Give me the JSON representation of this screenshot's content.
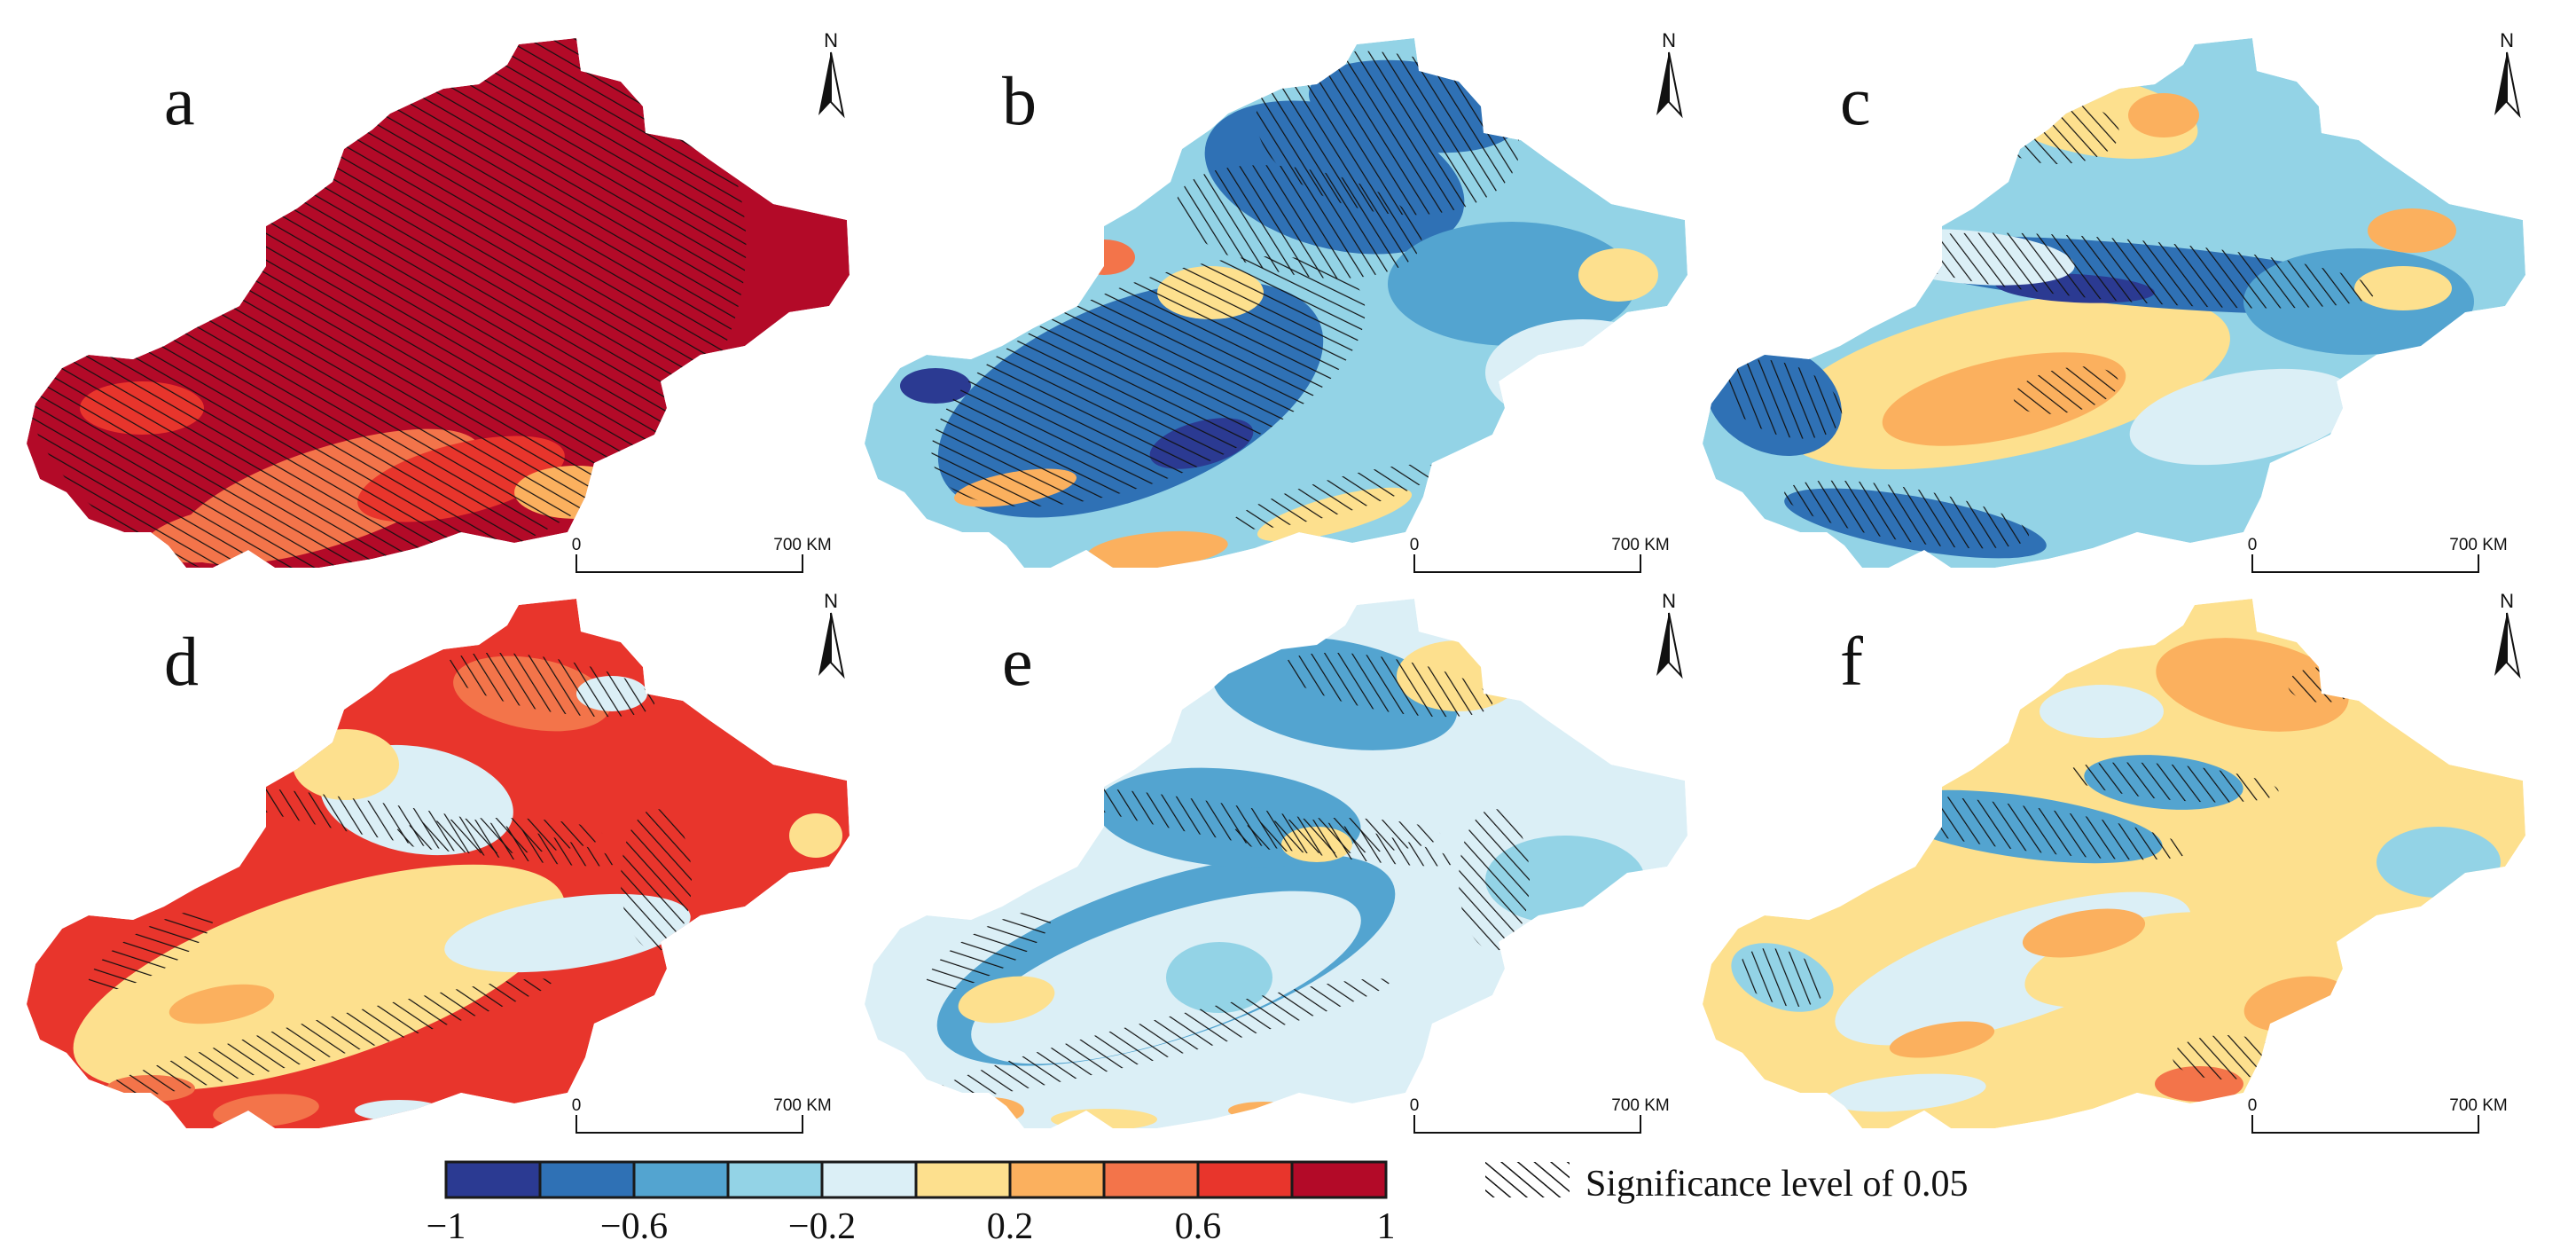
{
  "figure": {
    "north_label": "N",
    "scale": {
      "start": "0",
      "end": "700 KM"
    },
    "panels": [
      {
        "letter": "a",
        "theme": "strong-positive",
        "significance": "widespread"
      },
      {
        "letter": "b",
        "theme": "negative",
        "significance": "north-and-west"
      },
      {
        "letter": "c",
        "theme": "mixed",
        "significance": "central-band"
      },
      {
        "letter": "d",
        "theme": "positive-rim",
        "significance": "mountain-ring"
      },
      {
        "letter": "e",
        "theme": "weak-negative",
        "significance": "mountain-ring"
      },
      {
        "letter": "f",
        "theme": "weak-positive",
        "significance": "scattered"
      }
    ]
  },
  "legend": {
    "colors": [
      "#2b3a92",
      "#2f71b5",
      "#53a4d0",
      "#93d3e6",
      "#dbeff6",
      "#fde08e",
      "#fbb05e",
      "#f3744a",
      "#e8352c",
      "#b30a28"
    ],
    "ticks": [
      "−1",
      "−0.6",
      "−0.2",
      "0.2",
      "0.6",
      "1"
    ],
    "tick_values": [
      -1,
      -0.6,
      -0.2,
      0.2,
      0.6,
      1
    ],
    "range": [
      -1,
      1
    ],
    "significance_label": "Significance level of 0.05"
  }
}
